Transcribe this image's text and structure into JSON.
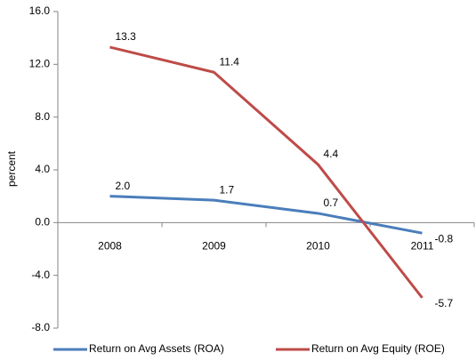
{
  "chart_data": {
    "type": "line",
    "y_label": "percent",
    "categories": [
      "2008",
      "2009",
      "2010",
      "2011"
    ],
    "series": [
      {
        "name": "Return on Avg Assets (ROA)",
        "color": "#4a7ebb",
        "values": [
          2.0,
          1.7,
          0.7,
          -0.8
        ],
        "value_labels": [
          "2.0",
          "1.7",
          "0.7",
          "-0.8"
        ]
      },
      {
        "name": "Return on Avg Equity (ROE)",
        "color": "#be4b48",
        "values": [
          13.3,
          11.4,
          4.4,
          -5.7
        ],
        "value_labels": [
          "13.3",
          "11.4",
          "4.4",
          "-5.7"
        ]
      }
    ],
    "ylim": [
      -8,
      16
    ],
    "yticks": [
      {
        "value": -8,
        "label": "-8.0"
      },
      {
        "value": -4,
        "label": "-4.0"
      },
      {
        "value": 0,
        "label": "0.0"
      },
      {
        "value": 4,
        "label": "4.0"
      },
      {
        "value": 8,
        "label": "8.0"
      },
      {
        "value": 12,
        "label": "12.0"
      },
      {
        "value": 16,
        "label": "16.0"
      }
    ],
    "legend": "bottom"
  }
}
